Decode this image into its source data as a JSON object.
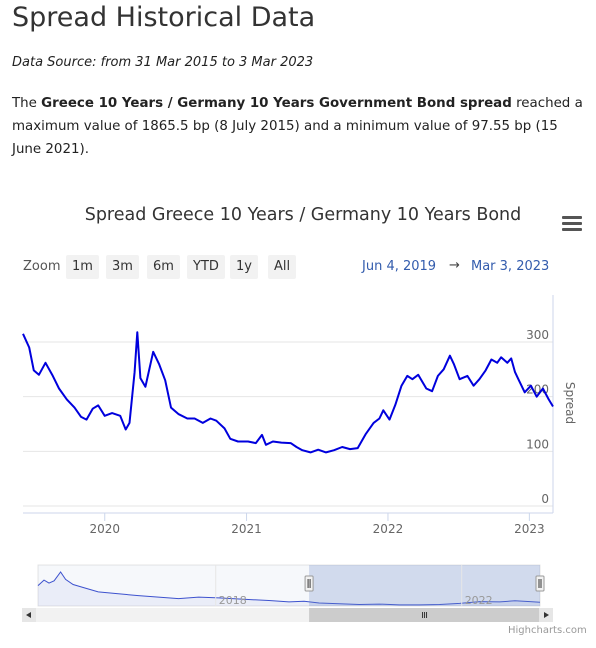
{
  "page": {
    "title": "Spread Historical Data",
    "source": "Data Source: from 31 Mar 2015 to 3 Mar 2023",
    "summary": {
      "lead": "The ",
      "bold": "Greece 10 Years / Germany 10 Years Government Bond spread",
      "rest": " reached a maximum value of 1865.5 bp (8 July 2015) and a minimum value of 97.55 bp (15 June 2021)."
    }
  },
  "range_selector": {
    "zoom_label": "Zoom",
    "buttons": [
      "1m",
      "3m",
      "6m",
      "YTD",
      "1y",
      "All"
    ],
    "from": "Jun 4, 2019",
    "separator": "→",
    "to": "Mar 3, 2023"
  },
  "credits": "Highcharts.com",
  "colors": {
    "line": "#0000dd",
    "navigator_line": "#3b4fd0",
    "accent": "#335cad"
  },
  "chart_data": {
    "type": "line",
    "title": "Spread Greece 10 Years / Germany 10 Years Bond",
    "ylabel": "Spread",
    "ylim": [
      0,
      300
    ],
    "xlim": [
      "2019-06-04",
      "2023-03-03"
    ],
    "y_ticks": [
      "0",
      "100",
      "200",
      "300"
    ],
    "x_ticks": [
      "2020",
      "2021",
      "2022",
      "2023"
    ],
    "grid": true,
    "series": [
      {
        "points": [
          [
            "2019-06-04",
            315
          ],
          [
            "2019-06-20",
            290
          ],
          [
            "2019-07-02",
            248
          ],
          [
            "2019-07-15",
            240
          ],
          [
            "2019-08-01",
            262
          ],
          [
            "2019-08-20",
            238
          ],
          [
            "2019-09-05",
            215
          ],
          [
            "2019-09-25",
            195
          ],
          [
            "2019-10-15",
            180
          ],
          [
            "2019-11-01",
            163
          ],
          [
            "2019-11-15",
            158
          ],
          [
            "2019-12-01",
            178
          ],
          [
            "2019-12-15",
            184
          ],
          [
            "2020-01-01",
            165
          ],
          [
            "2020-01-20",
            170
          ],
          [
            "2020-02-10",
            165
          ],
          [
            "2020-02-24",
            140
          ],
          [
            "2020-03-05",
            152
          ],
          [
            "2020-03-18",
            245
          ],
          [
            "2020-03-25",
            318
          ],
          [
            "2020-04-02",
            234
          ],
          [
            "2020-04-15",
            218
          ],
          [
            "2020-04-25",
            250
          ],
          [
            "2020-05-05",
            282
          ],
          [
            "2020-05-20",
            260
          ],
          [
            "2020-06-05",
            230
          ],
          [
            "2020-06-20",
            180
          ],
          [
            "2020-07-10",
            168
          ],
          [
            "2020-08-01",
            160
          ],
          [
            "2020-08-20",
            160
          ],
          [
            "2020-09-10",
            152
          ],
          [
            "2020-09-30",
            160
          ],
          [
            "2020-10-15",
            156
          ],
          [
            "2020-11-05",
            142
          ],
          [
            "2020-11-20",
            123
          ],
          [
            "2020-12-10",
            118
          ],
          [
            "2021-01-05",
            118
          ],
          [
            "2021-01-25",
            115
          ],
          [
            "2021-02-10",
            130
          ],
          [
            "2021-02-20",
            112
          ],
          [
            "2021-03-10",
            118
          ],
          [
            "2021-04-01",
            116
          ],
          [
            "2021-04-25",
            115
          ],
          [
            "2021-05-10",
            108
          ],
          [
            "2021-05-25",
            102
          ],
          [
            "2021-06-15",
            98
          ],
          [
            "2021-07-05",
            103
          ],
          [
            "2021-07-25",
            98
          ],
          [
            "2021-08-15",
            102
          ],
          [
            "2021-09-05",
            108
          ],
          [
            "2021-09-25",
            104
          ],
          [
            "2021-10-15",
            106
          ],
          [
            "2021-11-05",
            132
          ],
          [
            "2021-11-25",
            152
          ],
          [
            "2021-12-10",
            160
          ],
          [
            "2021-12-20",
            175
          ],
          [
            "2022-01-05",
            158
          ],
          [
            "2022-01-20",
            185
          ],
          [
            "2022-02-05",
            220
          ],
          [
            "2022-02-20",
            238
          ],
          [
            "2022-03-05",
            232
          ],
          [
            "2022-03-20",
            240
          ],
          [
            "2022-04-10",
            215
          ],
          [
            "2022-04-25",
            210
          ],
          [
            "2022-05-10",
            238
          ],
          [
            "2022-05-25",
            250
          ],
          [
            "2022-06-10",
            275
          ],
          [
            "2022-06-20",
            260
          ],
          [
            "2022-07-05",
            232
          ],
          [
            "2022-07-25",
            238
          ],
          [
            "2022-08-10",
            220
          ],
          [
            "2022-08-25",
            232
          ],
          [
            "2022-09-10",
            248
          ],
          [
            "2022-09-25",
            268
          ],
          [
            "2022-10-10",
            262
          ],
          [
            "2022-10-20",
            272
          ],
          [
            "2022-11-05",
            262
          ],
          [
            "2022-11-15",
            270
          ],
          [
            "2022-11-25",
            245
          ],
          [
            "2022-12-05",
            230
          ],
          [
            "2022-12-20",
            208
          ],
          [
            "2023-01-05",
            220
          ],
          [
            "2023-01-20",
            200
          ],
          [
            "2023-02-05",
            215
          ],
          [
            "2023-02-20",
            195
          ],
          [
            "2023-03-03",
            182
          ]
        ]
      }
    ],
    "navigator": {
      "x_ticks": [
        "2018",
        "2022"
      ],
      "points": [
        [
          0.0,
          0.55
        ],
        [
          0.012,
          0.7
        ],
        [
          0.022,
          0.62
        ],
        [
          0.032,
          0.68
        ],
        [
          0.045,
          0.92
        ],
        [
          0.055,
          0.72
        ],
        [
          0.07,
          0.58
        ],
        [
          0.09,
          0.5
        ],
        [
          0.12,
          0.38
        ],
        [
          0.16,
          0.33
        ],
        [
          0.2,
          0.28
        ],
        [
          0.24,
          0.24
        ],
        [
          0.28,
          0.2
        ],
        [
          0.32,
          0.24
        ],
        [
          0.36,
          0.22
        ],
        [
          0.41,
          0.18
        ],
        [
          0.46,
          0.15
        ],
        [
          0.5,
          0.11
        ],
        [
          0.53,
          0.13
        ],
        [
          0.56,
          0.08
        ],
        [
          0.6,
          0.06
        ],
        [
          0.64,
          0.04
        ],
        [
          0.68,
          0.05
        ],
        [
          0.72,
          0.03
        ],
        [
          0.76,
          0.03
        ],
        [
          0.8,
          0.04
        ],
        [
          0.84,
          0.07
        ],
        [
          0.88,
          0.12
        ],
        [
          0.92,
          0.11
        ],
        [
          0.95,
          0.14
        ],
        [
          0.98,
          0.12
        ],
        [
          1.0,
          0.1
        ]
      ],
      "selected_range": [
        0.54,
        1.0
      ]
    }
  }
}
